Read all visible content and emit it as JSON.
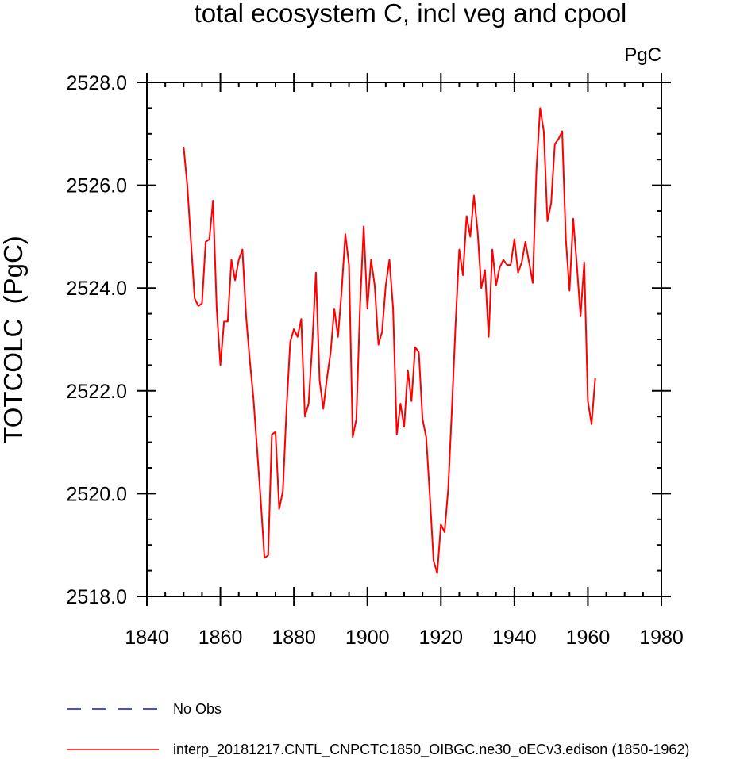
{
  "chart_data": {
    "type": "line",
    "title": "total ecosystem C, incl veg and cpool",
    "units_label": "PgC",
    "xlabel": "",
    "ylabel": "TOTCOLC  (PgC)",
    "xlim": [
      1840,
      1980
    ],
    "ylim": [
      2518,
      2528
    ],
    "xticks": [
      1840,
      1860,
      1880,
      1900,
      1920,
      1940,
      1960,
      1980
    ],
    "xtick_labels": [
      "1840",
      "1860",
      "1880",
      "1900",
      "1920",
      "1940",
      "1960",
      "1980"
    ],
    "yticks": [
      2518,
      2520,
      2522,
      2524,
      2526,
      2528
    ],
    "ytick_labels": [
      "2518.0",
      "2520.0",
      "2522.0",
      "2524.0",
      "2526.0",
      "2528.0"
    ],
    "x_minor_step": 5,
    "y_minor_step": 0.5,
    "grid": false,
    "legend_position": "bottom",
    "series": [
      {
        "name": "No Obs",
        "color": "#1010c8",
        "dash": "dashed",
        "x": [],
        "values": []
      },
      {
        "name": "interp_20181217.CNTL_CNPCTC1850_OIBGC.ne30_oECv3.edison (1850-1962)",
        "color": "#ff0000",
        "dash": "solid",
        "x": [
          1850,
          1851,
          1852,
          1853,
          1854,
          1855,
          1856,
          1857,
          1858,
          1859,
          1860,
          1861,
          1862,
          1863,
          1864,
          1865,
          1866,
          1867,
          1868,
          1869,
          1870,
          1871,
          1872,
          1873,
          1874,
          1875,
          1876,
          1877,
          1878,
          1879,
          1880,
          1881,
          1882,
          1883,
          1884,
          1885,
          1886,
          1887,
          1888,
          1889,
          1890,
          1891,
          1892,
          1893,
          1894,
          1895,
          1896,
          1897,
          1898,
          1899,
          1900,
          1901,
          1902,
          1903,
          1904,
          1905,
          1906,
          1907,
          1908,
          1909,
          1910,
          1911,
          1912,
          1913,
          1914,
          1915,
          1916,
          1917,
          1918,
          1919,
          1920,
          1921,
          1922,
          1923,
          1924,
          1925,
          1926,
          1927,
          1928,
          1929,
          1930,
          1931,
          1932,
          1933,
          1934,
          1935,
          1936,
          1937,
          1938,
          1939,
          1940,
          1941,
          1942,
          1943,
          1944,
          1945,
          1946,
          1947,
          1948,
          1949,
          1950,
          1951,
          1952,
          1953,
          1954,
          1955,
          1956,
          1957,
          1958,
          1959,
          1960,
          1961,
          1962
        ],
        "values": [
          2526.75,
          2526.0,
          2524.9,
          2523.8,
          2523.65,
          2523.7,
          2524.9,
          2524.95,
          2525.7,
          2523.6,
          2522.5,
          2523.35,
          2523.35,
          2524.55,
          2524.15,
          2524.55,
          2524.75,
          2523.45,
          2522.6,
          2521.85,
          2520.85,
          2519.85,
          2518.75,
          2518.8,
          2521.15,
          2521.2,
          2519.7,
          2520.05,
          2521.65,
          2522.95,
          2523.2,
          2523.05,
          2523.4,
          2521.5,
          2521.75,
          2522.9,
          2524.3,
          2522.2,
          2521.65,
          2522.25,
          2522.75,
          2523.6,
          2523.05,
          2523.95,
          2525.05,
          2524.45,
          2521.1,
          2521.45,
          2523.65,
          2525.2,
          2523.6,
          2524.55,
          2524.05,
          2522.9,
          2523.15,
          2524.05,
          2524.55,
          2523.6,
          2521.15,
          2521.75,
          2521.3,
          2522.4,
          2521.8,
          2522.85,
          2522.75,
          2521.45,
          2521.1,
          2519.95,
          2518.7,
          2518.45,
          2519.4,
          2519.25,
          2520.1,
          2521.65,
          2523.3,
          2524.75,
          2524.25,
          2525.4,
          2525.0,
          2525.8,
          2525.1,
          2524.0,
          2524.35,
          2523.05,
          2524.75,
          2524.05,
          2524.4,
          2524.55,
          2524.45,
          2524.45,
          2524.95,
          2524.3,
          2524.5,
          2524.9,
          2524.5,
          2524.1,
          2526.3,
          2527.5,
          2527.05,
          2525.3,
          2525.65,
          2526.8,
          2526.9,
          2527.05,
          2524.95,
          2523.95,
          2525.35,
          2524.45,
          2523.45,
          2524.5,
          2521.8,
          2521.35,
          2522.25
        ]
      }
    ]
  }
}
